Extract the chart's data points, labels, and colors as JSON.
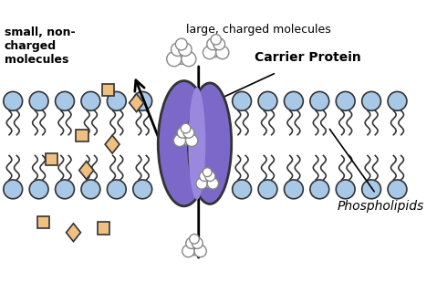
{
  "bg_color": "#ffffff",
  "phospholipid_head_color": "#a8c8e8",
  "phospholipid_head_edge": "#333333",
  "tail_color": "#333333",
  "carrier_protein_color": "#7b68c8",
  "carrier_protein_edge": "#333333",
  "small_molecule_color": "#f0c080",
  "small_molecule_edge": "#333333",
  "large_molecule_color": "#e8e8e8",
  "large_molecule_edge": "#555555",
  "arrow_color": "#000000",
  "label_carrier": "Carrier Protein",
  "label_phospholipids": "Phospholipids",
  "label_small": "small, non-\ncharged\nmolecules",
  "label_large": "large, charged molecules",
  "figsize": [
    4.79,
    3.21
  ],
  "dpi": 100
}
